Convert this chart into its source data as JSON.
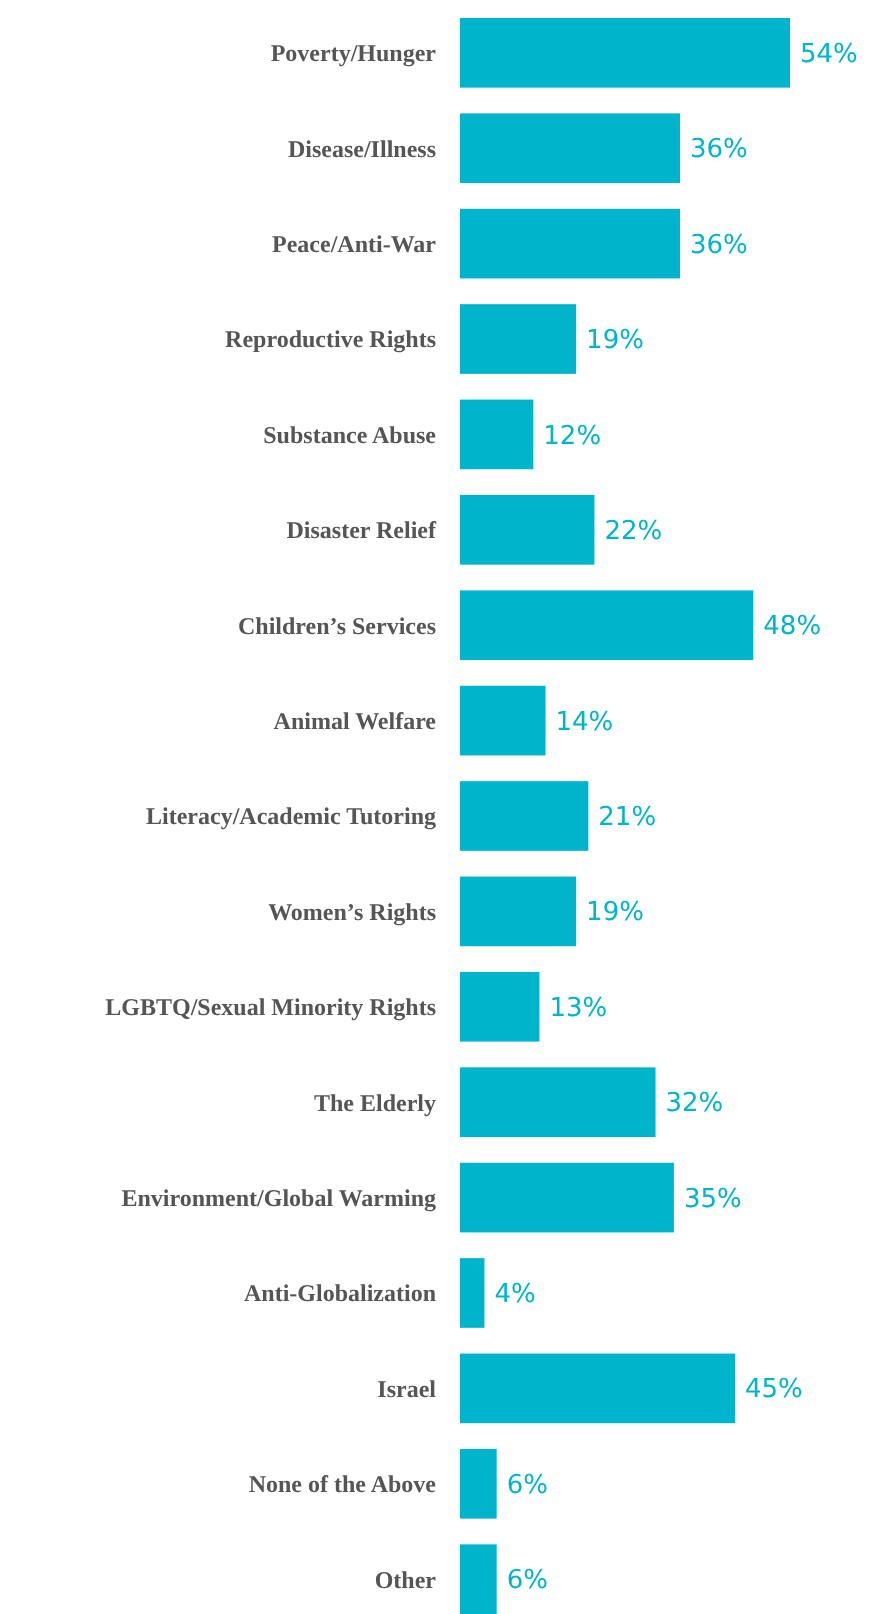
{
  "chart_data": {
    "type": "bar",
    "orientation": "horizontal",
    "categories": [
      "Poverty/Hunger",
      "Disease/Illness",
      "Peace/Anti-War",
      "Reproductive Rights",
      "Substance Abuse",
      "Disaster Relief",
      "Children’s Services",
      "Animal Welfare",
      "Literacy/Academic Tutoring",
      "Women’s Rights",
      "LGBTQ/Sexual Minority Rights",
      "The Elderly",
      "Environment/Global Warming",
      "Anti-Globalization",
      "Israel",
      "None of the Above",
      "Other"
    ],
    "values": [
      54,
      36,
      36,
      19,
      12,
      22,
      48,
      14,
      21,
      19,
      13,
      32,
      35,
      4,
      45,
      6,
      6
    ],
    "value_labels": [
      "54%",
      "36%",
      "36%",
      "19%",
      "12%",
      "22%",
      "48%",
      "14%",
      "21%",
      "19%",
      "13%",
      "32%",
      "35%",
      "4%",
      "45%",
      "6%",
      "6%"
    ],
    "color": "#00b4cc"
  }
}
